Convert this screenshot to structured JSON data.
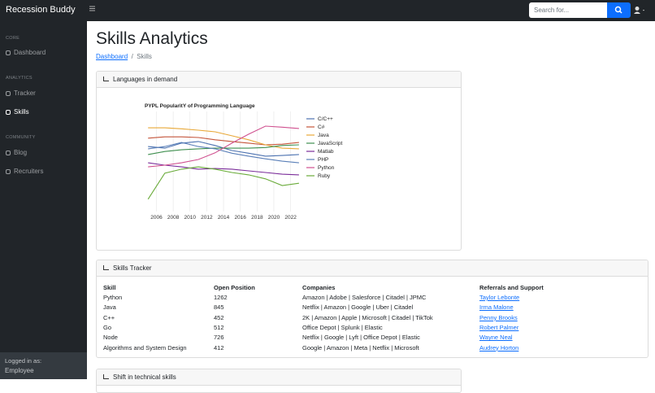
{
  "navbar": {
    "brand": "Recession Buddy",
    "search_placeholder": "Search for..."
  },
  "sidebar": {
    "sections": [
      {
        "heading": "CORE",
        "items": [
          "Dashboard"
        ]
      },
      {
        "heading": "ANALYTICS",
        "items": [
          "Tracker",
          "Skills"
        ]
      },
      {
        "heading": "COMMUNITY",
        "items": [
          "Blog",
          "Recruiters"
        ]
      }
    ],
    "footer": {
      "label": "Logged in as:",
      "user": "Employee"
    }
  },
  "page": {
    "title": "Skills Analytics",
    "breadcrumb": [
      "Dashboard",
      "Skills"
    ]
  },
  "cards": [
    {
      "title": "Languages in demand",
      "chart_data": {
        "type": "line",
        "title": "PYPL PopularitY of Programming Language",
        "x": [
          2005,
          2007,
          2009,
          2011,
          2013,
          2015,
          2017,
          2019,
          2021,
          2023
        ],
        "xlim": [
          2004.5,
          2023.2
        ],
        "xticks": [
          2006,
          2008,
          2010,
          2012,
          2014,
          2016,
          2018,
          2020,
          2022
        ],
        "ylim": [
          0,
          30
        ],
        "grid": true,
        "series": [
          {
            "name": "C/C++",
            "color": "#4c72b0",
            "values": [
              19.5,
              19.0,
              20.5,
              21.0,
              19.8,
              18.3,
              17.5,
              16.6,
              16.8,
              17.1
            ]
          },
          {
            "name": "C#",
            "color": "#c4553b",
            "values": [
              22.0,
              22.4,
              22.4,
              22.2,
              21.5,
              21.0,
              20.5,
              20.0,
              20.2,
              20.7
            ]
          },
          {
            "name": "Java",
            "color": "#e8a838",
            "values": [
              25.1,
              25.1,
              24.8,
              24.4,
              23.9,
              22.7,
              21.5,
              20.0,
              19.0,
              18.8
            ]
          },
          {
            "name": "JavaScript",
            "color": "#3f8f4f",
            "values": [
              17.1,
              18.0,
              18.5,
              18.8,
              19.0,
              19.0,
              19.0,
              19.2,
              19.8,
              20.0
            ]
          },
          {
            "name": "Matlab",
            "color": "#7b2d9a",
            "values": [
              14.6,
              13.9,
              13.4,
              12.7,
              12.9,
              12.7,
              12.2,
              11.7,
              11.2,
              11.0
            ]
          },
          {
            "name": "PHP",
            "color": "#5a7fb8",
            "values": [
              18.8,
              19.5,
              20.7,
              19.5,
              18.8,
              17.5,
              16.6,
              15.8,
              15.1,
              14.6
            ]
          },
          {
            "name": "Python",
            "color": "#d0508f",
            "values": [
              13.4,
              13.9,
              14.6,
              15.6,
              17.6,
              20.5,
              23.2,
              25.6,
              25.3,
              24.9
            ]
          },
          {
            "name": "Ruby",
            "color": "#6aab3a",
            "values": [
              3.7,
              11.5,
              12.7,
              13.4,
              12.7,
              11.7,
              11.0,
              9.8,
              7.8,
              8.5
            ]
          }
        ]
      }
    },
    {
      "title": "Skills Tracker",
      "table": {
        "header": [
          "Skill",
          "Open Position",
          "Companies",
          "Referrals and Support"
        ],
        "rows": [
          [
            "Python",
            "1262",
            "Amazon | Adobe | Salesforce | Citadel | JPMC",
            "Taylor Lebonte"
          ],
          [
            "Java",
            "845",
            "Netflix | Amazon | Google | Uber | Citadel",
            "Irma Malone"
          ],
          [
            "C++",
            "452",
            "2K | Amazon | Apple | Microsoft | Citadel | TikTok",
            "Penny Brooks"
          ],
          [
            "Go",
            "512",
            "Office Depot | Splunk | Elastic",
            "Robert Palmer"
          ],
          [
            "Node",
            "726",
            "Netflix | Google | Lyft | Office Depot | Elastic",
            "Wayne Neal"
          ],
          [
            "Algorithms and System Design",
            "412",
            "Google | Amazon | Meta | Netflix | Microsoft",
            "Audrey Horton"
          ]
        ]
      }
    },
    {
      "title": "Shift in technical skills"
    }
  ]
}
